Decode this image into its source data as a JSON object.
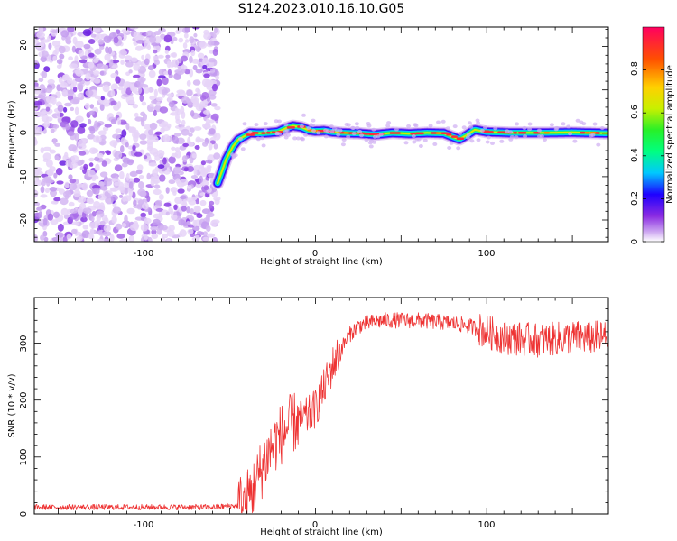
{
  "title": "S124.2023.010.16.10.G05",
  "chart_data": [
    {
      "type": "heatmap",
      "xlabel": "Height of straight line (km)",
      "ylabel": "Frequency (Hz)",
      "xlim": [
        -164,
        171
      ],
      "ylim": [
        -25,
        24.5
      ],
      "xticks": [
        -100,
        0,
        100
      ],
      "yticks": [
        -20,
        -10,
        0,
        10,
        20
      ],
      "noise_region_x": [
        -164,
        -57
      ],
      "colorbar": {
        "label": "Normalized spectral amplitude",
        "range": [
          0,
          1
        ],
        "ticks": [
          0.0,
          0.2,
          0.4,
          0.6,
          0.8
        ],
        "colors": [
          "#ffffff",
          "#c9a0f0",
          "#8a2be2",
          "#1e00ff",
          "#00c8ff",
          "#00ff80",
          "#28f028",
          "#c8f000",
          "#ffd000",
          "#ff5000",
          "#ff0060"
        ]
      },
      "frequency_track": {
        "x": [
          -57,
          -52,
          -48,
          -45,
          -42,
          -38,
          -33,
          -28,
          -22,
          -17,
          -13,
          -8,
          -4,
          0,
          5,
          10,
          15,
          25,
          35,
          45,
          55,
          65,
          75,
          80,
          84,
          88,
          93,
          100,
          115,
          130,
          150,
          171
        ],
        "y": [
          -11.5,
          -6,
          -3,
          -1.5,
          -0.8,
          0.1,
          0,
          0.1,
          0.3,
          1.2,
          1.7,
          1.4,
          0.7,
          0.5,
          0.6,
          0.3,
          0.1,
          0,
          -0.3,
          0.1,
          -0.1,
          0.1,
          0,
          -0.8,
          -1.4,
          -0.5,
          0.8,
          0.3,
          0.1,
          0.1,
          0.2,
          0
        ]
      }
    },
    {
      "type": "line",
      "xlabel": "Height of straight line (km)",
      "ylabel": "SNR (10 * v/v)",
      "xlim": [
        -164,
        171
      ],
      "ylim": [
        0,
        380
      ],
      "xticks": [
        -100,
        0,
        100
      ],
      "yticks": [
        0,
        100,
        200,
        300
      ],
      "color": "#ee3333",
      "envelope": {
        "x": [
          -164,
          -60,
          -45,
          -40,
          -35,
          -30,
          -25,
          -20,
          -15,
          -10,
          -5,
          0,
          5,
          10,
          15,
          20,
          25,
          30,
          40,
          60,
          80,
          90,
          100,
          110,
          130,
          150,
          171
        ],
        "y": [
          12,
          12,
          15,
          25,
          50,
          90,
          120,
          140,
          155,
          165,
          170,
          185,
          220,
          260,
          290,
          315,
          330,
          335,
          340,
          340,
          335,
          330,
          320,
          310,
          305,
          310,
          310
        ]
      }
    }
  ]
}
